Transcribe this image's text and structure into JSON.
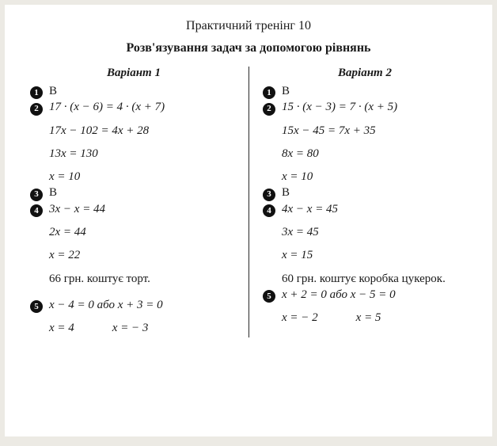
{
  "title": "Практичний тренінг 10",
  "subtitle": "Розв'язування задач за допомогою рівнянь",
  "variants": {
    "v1": {
      "header": "Варіант 1",
      "q1_answer": "В",
      "q2_line1": "17 · (x − 6) = 4 · (x + 7)",
      "q2_line2": "17x − 102 = 4x + 28",
      "q2_line3": "13x = 130",
      "q2_line4": "x = 10",
      "q3_answer": "В",
      "q4_line1": "3x − x = 44",
      "q4_line2": "2x = 44",
      "q4_line3": "x = 22",
      "q4_result": "66 грн. коштує торт.",
      "q5_line1": "x − 4 = 0 або x + 3 = 0",
      "q5_ans1": "x = 4",
      "q5_ans2": "x = − 3"
    },
    "v2": {
      "header": "Варіант 2",
      "q1_answer": "В",
      "q2_line1": "15 · (x − 3) = 7 · (x + 5)",
      "q2_line2": "15x − 45 = 7x + 35",
      "q2_line3": "8x = 80",
      "q2_line4": "x = 10",
      "q3_answer": "В",
      "q4_line1": "4x − x = 45",
      "q4_line2": "3x = 45",
      "q4_line3": "x = 15",
      "q4_result": "60 грн. коштує коробка цуке­рок.",
      "q5_line1": "x + 2 = 0 або x − 5 = 0",
      "q5_ans1": "x = − 2",
      "q5_ans2": "x = 5"
    }
  },
  "bullets": {
    "b1": "1",
    "b2": "2",
    "b3": "3",
    "b4": "4",
    "b5": "5"
  }
}
